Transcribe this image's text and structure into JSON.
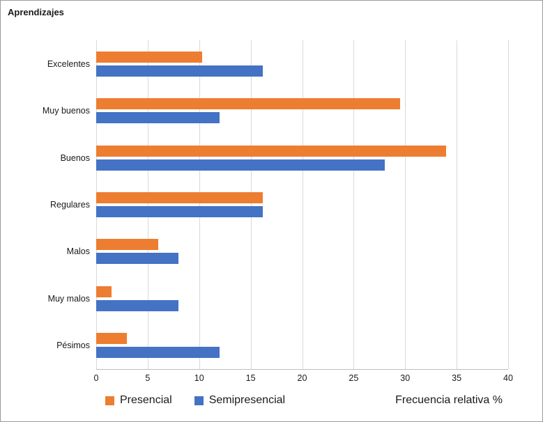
{
  "title": "Aprendizajes",
  "colors": {
    "presencial": "#ED7D31",
    "semipresencial": "#4472C4",
    "gridline": "#D9D9D9",
    "axis": "#BFBFBF"
  },
  "chart_data": {
    "type": "bar",
    "orientation": "horizontal",
    "title": "Aprendizajes",
    "xlabel": "Frecuencia relativa %",
    "ylabel": "",
    "xlim": [
      0,
      40
    ],
    "x_ticks": [
      0,
      5,
      10,
      15,
      20,
      25,
      30,
      35,
      40
    ],
    "grid": true,
    "legend_position": "bottom",
    "categories": [
      "Excelentes",
      "Muy buenos",
      "Buenos",
      "Regulares",
      "Malos",
      "Muy malos",
      "Pésimos"
    ],
    "series": [
      {
        "name": "Presencial",
        "color": "#ED7D31",
        "values": [
          10.3,
          29.5,
          34,
          16.2,
          6,
          1.5,
          3
        ]
      },
      {
        "name": "Semipresencial",
        "color": "#4472C4",
        "values": [
          16.2,
          12,
          28,
          16.2,
          8,
          8,
          12
        ]
      }
    ]
  }
}
